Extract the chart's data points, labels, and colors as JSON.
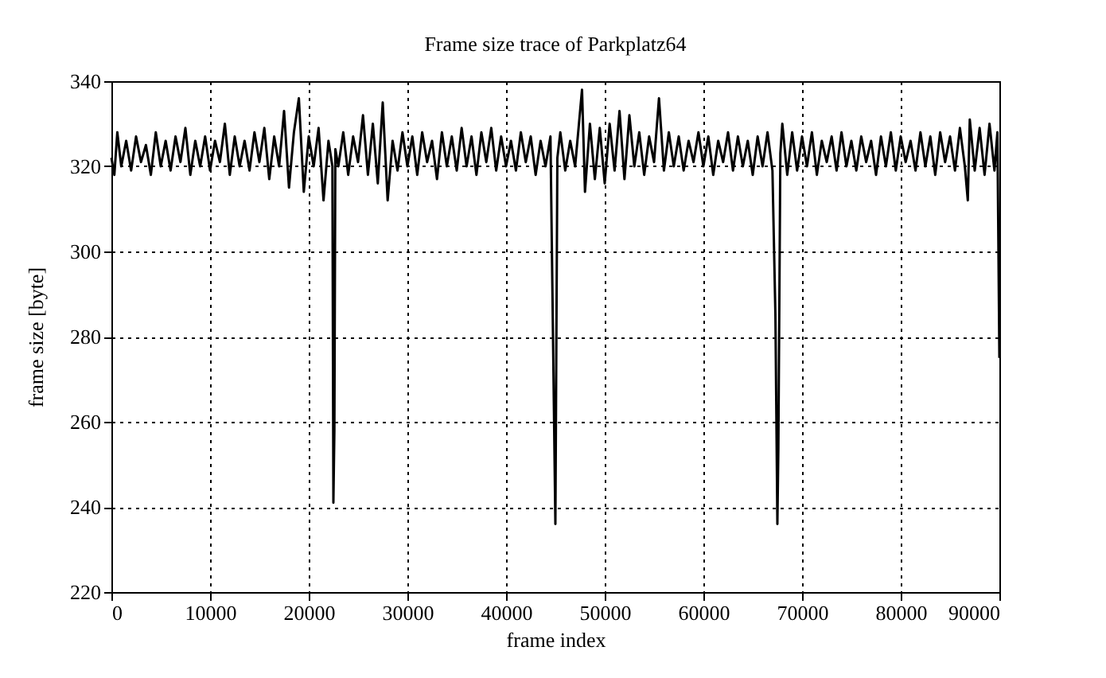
{
  "chart_data": {
    "type": "line",
    "title": "Frame size trace of Parkplatz64",
    "xlabel": "frame index",
    "ylabel": "frame size [byte]",
    "xlim": [
      0,
      90000
    ],
    "xticks": [
      0,
      10000,
      20000,
      30000,
      40000,
      50000,
      60000,
      70000,
      80000,
      90000
    ],
    "ylim": [
      220,
      340
    ],
    "yticks": [
      220,
      240,
      260,
      280,
      300,
      320,
      340
    ],
    "grid": true,
    "line_style": "solid",
    "marker": "none",
    "x": [
      0,
      300,
      600,
      1000,
      1500,
      2000,
      2500,
      3000,
      3500,
      4000,
      4500,
      5000,
      5500,
      6000,
      6500,
      7000,
      7500,
      8000,
      8500,
      9000,
      9500,
      10000,
      10500,
      11000,
      11500,
      12000,
      12500,
      13000,
      13500,
      14000,
      14500,
      15000,
      15500,
      16000,
      16500,
      17000,
      17500,
      18000,
      18500,
      19000,
      19500,
      20000,
      20500,
      21000,
      21500,
      22000,
      22400,
      22500,
      22600,
      22700,
      23000,
      23500,
      24000,
      24500,
      25000,
      25500,
      26000,
      26500,
      27000,
      27500,
      28000,
      28500,
      29000,
      29500,
      30000,
      30500,
      31000,
      31500,
      32000,
      32500,
      33000,
      33500,
      34000,
      34500,
      35000,
      35500,
      36000,
      36500,
      37000,
      37500,
      38000,
      38500,
      39000,
      39500,
      40000,
      40500,
      41000,
      41500,
      42000,
      42500,
      43000,
      43500,
      44000,
      44500,
      45000,
      45200,
      45500,
      46000,
      46500,
      47000,
      47700,
      48000,
      48500,
      49000,
      49500,
      50000,
      50500,
      51000,
      51500,
      52000,
      52500,
      53000,
      53500,
      54000,
      54500,
      55000,
      55500,
      56000,
      56500,
      57000,
      57500,
      58000,
      58500,
      59000,
      59500,
      60000,
      60500,
      61000,
      61500,
      62000,
      62500,
      63000,
      63500,
      64000,
      64500,
      65000,
      65500,
      66000,
      66500,
      67000,
      67300,
      67500,
      67600,
      67800,
      68000,
      68500,
      69000,
      69500,
      70000,
      70500,
      71000,
      71500,
      72000,
      72500,
      73000,
      73500,
      74000,
      74500,
      75000,
      75500,
      76000,
      76500,
      77000,
      77500,
      78000,
      78500,
      79000,
      79500,
      80000,
      80500,
      81000,
      81500,
      82000,
      82500,
      83000,
      83500,
      84000,
      84500,
      85000,
      85500,
      86000,
      86500,
      86800,
      87000,
      87500,
      88000,
      88500,
      89000,
      89500,
      89800,
      90000
    ],
    "series": [
      {
        "color": "#000000",
        "values": [
          322,
          318,
          328,
          320,
          326,
          319,
          327,
          321,
          325,
          318,
          328,
          320,
          326,
          319,
          327,
          321,
          329,
          318,
          326,
          320,
          327,
          319,
          326,
          321,
          330,
          318,
          327,
          320,
          326,
          319,
          328,
          321,
          329,
          317,
          327,
          320,
          333,
          315,
          328,
          336,
          314,
          327,
          320,
          329,
          312,
          326,
          320,
          241,
          258,
          324,
          320,
          328,
          318,
          327,
          321,
          332,
          318,
          330,
          316,
          335,
          312,
          326,
          319,
          328,
          320,
          327,
          318,
          328,
          321,
          326,
          317,
          328,
          320,
          327,
          319,
          329,
          320,
          327,
          318,
          328,
          321,
          329,
          319,
          327,
          320,
          326,
          319,
          328,
          321,
          327,
          318,
          326,
          320,
          327,
          236,
          322,
          328,
          319,
          326,
          320,
          338,
          314,
          330,
          317,
          329,
          316,
          330,
          319,
          333,
          317,
          332,
          320,
          328,
          318,
          327,
          321,
          336,
          319,
          328,
          320,
          327,
          319,
          326,
          321,
          328,
          320,
          327,
          318,
          326,
          321,
          328,
          319,
          327,
          320,
          326,
          318,
          327,
          320,
          328,
          319,
          285,
          236,
          254,
          323,
          330,
          318,
          328,
          319,
          327,
          320,
          328,
          318,
          326,
          321,
          327,
          319,
          328,
          320,
          326,
          319,
          327,
          321,
          326,
          318,
          327,
          320,
          328,
          319,
          327,
          321,
          326,
          319,
          328,
          320,
          327,
          318,
          328,
          321,
          327,
          319,
          329,
          320,
          312,
          331,
          319,
          329,
          318,
          330,
          319,
          328,
          275
        ]
      }
    ]
  }
}
